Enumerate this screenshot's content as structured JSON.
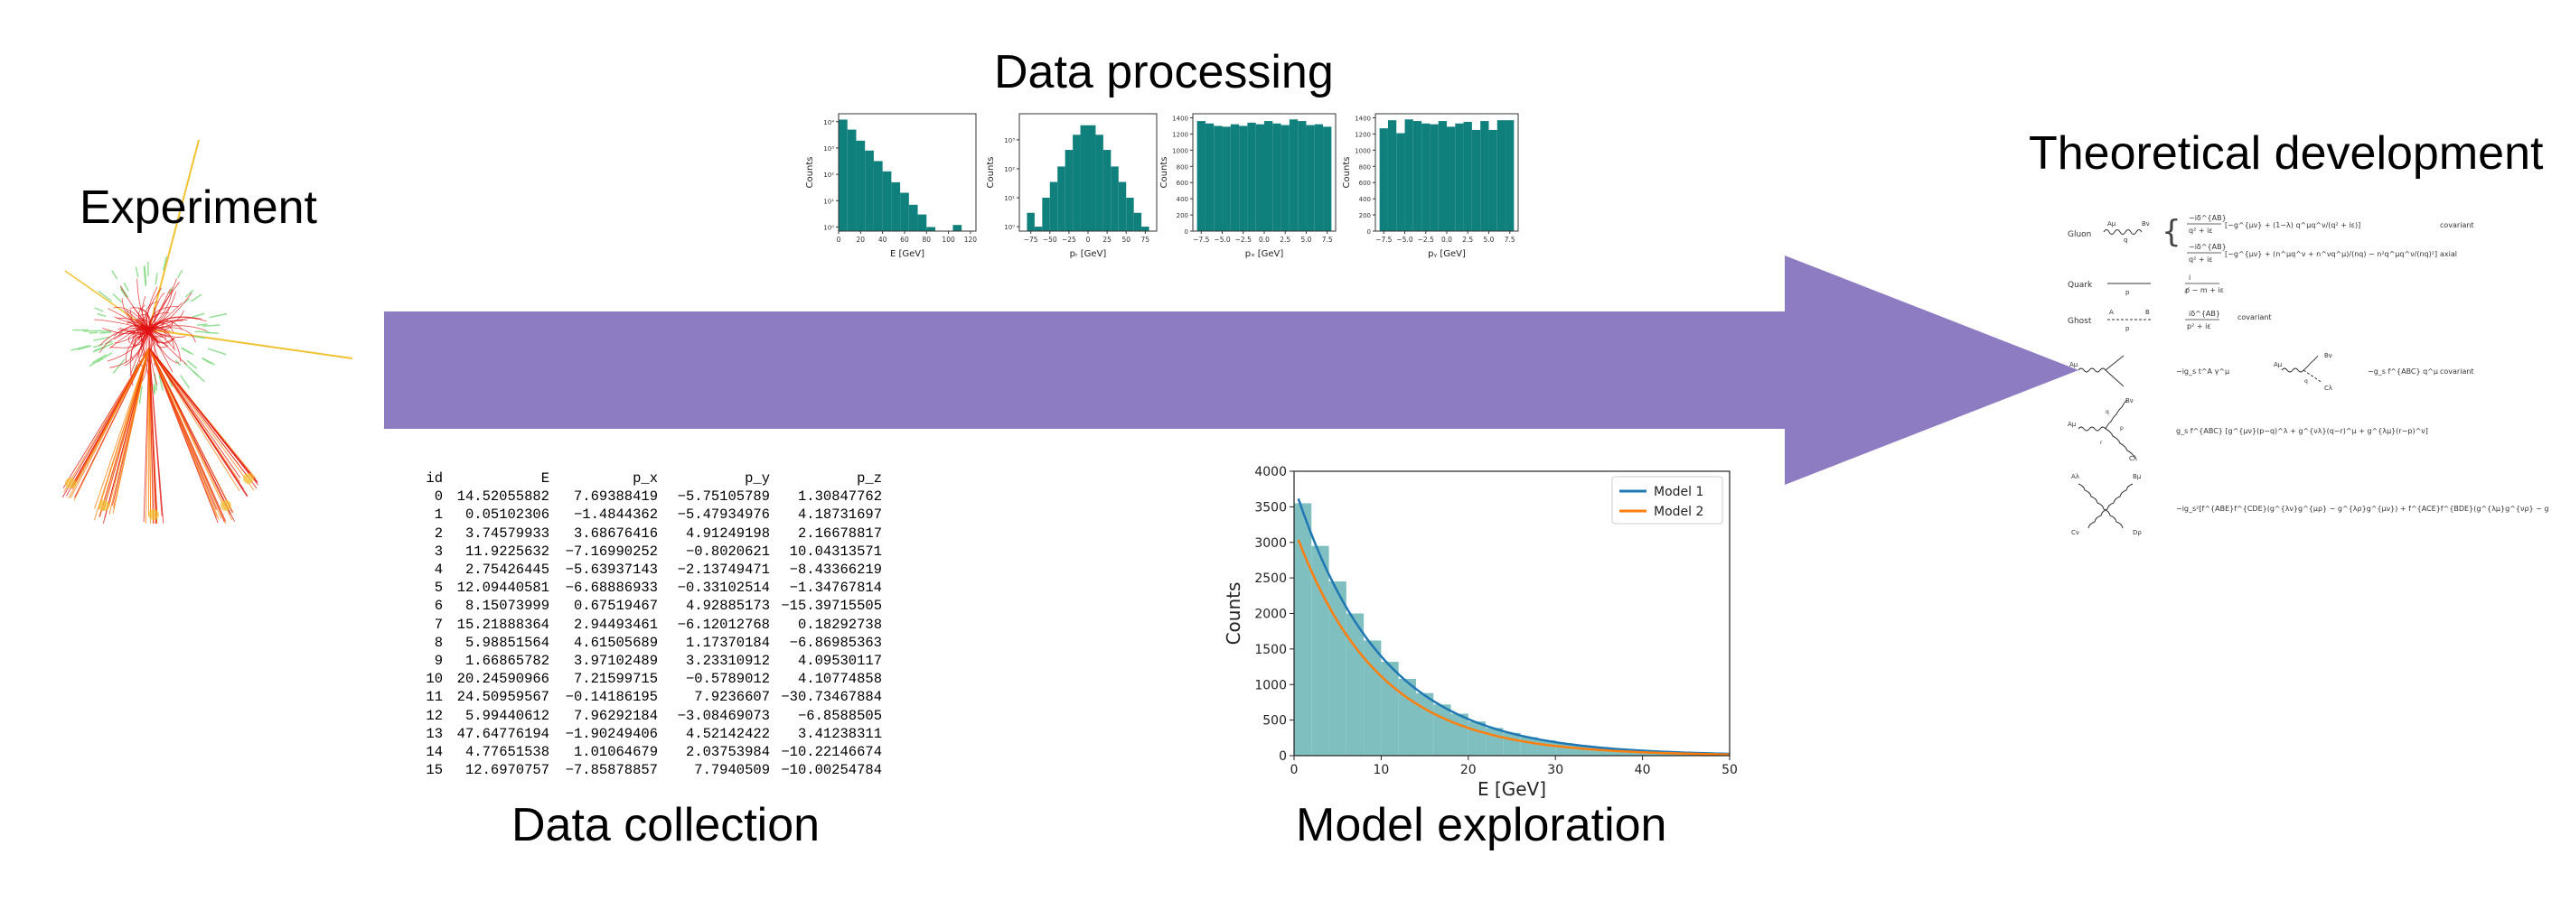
{
  "labels": {
    "experiment": "Experiment",
    "data_processing": "Data processing",
    "theoretical_development": "Theoretical development",
    "data_collection": "Data collection",
    "model_exploration": "Model exploration"
  },
  "colors": {
    "arrow": "#8e7cc3",
    "hist_fill": "#10807d",
    "model_hist_fill": "#7fbfbf",
    "model1": "#1f77b4",
    "model2": "#ff7f0e"
  },
  "table": {
    "columns": [
      "id",
      "E",
      "p_x",
      "p_y",
      "p_z"
    ],
    "rows": [
      [
        "0",
        "14.52055882",
        "7.69388419",
        "−5.75105789",
        "1.30847762"
      ],
      [
        "1",
        "0.05102306",
        "−1.4844362",
        "−5.47934976",
        "4.18731697"
      ],
      [
        "2",
        "3.74579933",
        "3.68676416",
        "4.91249198",
        "2.16678817"
      ],
      [
        "3",
        "11.9225632",
        "−7.16990252",
        "−0.8020621",
        "10.04313571"
      ],
      [
        "4",
        "2.75426445",
        "−5.63937143",
        "−2.13749471",
        "−8.43366219"
      ],
      [
        "5",
        "12.09440581",
        "−6.68886933",
        "−0.33102514",
        "−1.34767814"
      ],
      [
        "6",
        "8.15073999",
        "0.67519467",
        "4.92885173",
        "−15.39715505"
      ],
      [
        "7",
        "15.21888364",
        "2.94493461",
        "−6.12012768",
        "0.18292738"
      ],
      [
        "8",
        "5.98851564",
        "4.61505689",
        "1.17370184",
        "−6.86985363"
      ],
      [
        "9",
        "1.66865782",
        "3.97102489",
        "3.23310912",
        "4.09530117"
      ],
      [
        "10",
        "20.24590966",
        "7.21599715",
        "−0.5789012",
        "4.10774858"
      ],
      [
        "11",
        "24.50959567",
        "−0.14186195",
        "7.9236607",
        "−30.73467884"
      ],
      [
        "12",
        "5.99440612",
        "7.96292184",
        "−3.08469073",
        "−6.8588505"
      ],
      [
        "13",
        "47.64776194",
        "−1.90249406",
        "4.52142422",
        "3.41238311"
      ],
      [
        "14",
        "4.77651538",
        "1.01064679",
        "2.03753984",
        "−10.22146674"
      ],
      [
        "15",
        "12.6970757",
        "−7.85878857",
        "7.7940509",
        "−10.00254784"
      ]
    ]
  },
  "chart_data": [
    {
      "type": "bar",
      "xlabel": "E [GeV]",
      "ylabel": "Counts",
      "log_y": true,
      "x_ticks": [
        "0",
        "20",
        "40",
        "60",
        "80",
        "100",
        "120"
      ],
      "y_ticks": [
        "10⁰",
        "10¹",
        "10²",
        "10³",
        "10⁴"
      ],
      "xlim": [
        0,
        125
      ],
      "ylim": [
        0.7,
        20000
      ],
      "bin_width": 8,
      "x_start": 0,
      "values": [
        12000,
        5000,
        1900,
        800,
        320,
        130,
        50,
        20,
        7,
        3,
        1,
        0,
        0,
        1.2
      ]
    },
    {
      "type": "bar",
      "xlabel": "pᵣ [GeV]",
      "ylabel": "Counts",
      "log_y": true,
      "x_ticks": [
        "−75",
        "−50",
        "−25",
        "0",
        "25",
        "50",
        "75"
      ],
      "y_ticks": [
        "10⁰",
        "10¹",
        "10²",
        "10³"
      ],
      "xlim": [
        -90,
        90
      ],
      "ylim": [
        0.7,
        8000
      ],
      "bin_width": 10,
      "x_start": -80,
      "values": [
        3,
        1,
        10,
        35,
        120,
        450,
        1500,
        3200,
        3200,
        1500,
        450,
        120,
        35,
        10,
        3,
        1
      ]
    },
    {
      "type": "bar",
      "xlabel": "pₓ [GeV]",
      "ylabel": "Counts",
      "log_y": false,
      "x_ticks": [
        "−7.5",
        "−5.0",
        "−2.5",
        "0.0",
        "2.5",
        "5.0",
        "7.5"
      ],
      "y_ticks": [
        "0",
        "200",
        "400",
        "600",
        "800",
        "1000",
        "1200",
        "1400"
      ],
      "xlim": [
        -8.5,
        8.5
      ],
      "ylim": [
        0,
        1450
      ],
      "bin_width": 1,
      "x_start": -8,
      "values": [
        1360,
        1330,
        1300,
        1290,
        1320,
        1300,
        1340,
        1320,
        1360,
        1330,
        1310,
        1380,
        1360,
        1310,
        1320,
        1290
      ]
    },
    {
      "type": "bar",
      "xlabel": "pᵧ [GeV]",
      "ylabel": "Counts",
      "log_y": false,
      "x_ticks": [
        "−7.5",
        "−5.0",
        "−2.5",
        "0.0",
        "2.5",
        "5.0",
        "7.5"
      ],
      "y_ticks": [
        "0",
        "200",
        "400",
        "600",
        "800",
        "1000",
        "1200",
        "1400"
      ],
      "xlim": [
        -8.5,
        8.5
      ],
      "ylim": [
        0,
        1450
      ],
      "bin_width": 1,
      "x_start": -8,
      "values": [
        1270,
        1370,
        1210,
        1380,
        1360,
        1330,
        1320,
        1360,
        1290,
        1330,
        1350,
        1250,
        1360,
        1250,
        1370,
        1370
      ]
    },
    {
      "type": "bar",
      "xlabel": "E [GeV]",
      "ylabel": "Counts",
      "xlim": [
        0,
        50
      ],
      "ylim": [
        0,
        4000
      ],
      "x_ticks": [
        "0",
        "10",
        "20",
        "30",
        "40",
        "50"
      ],
      "y_ticks": [
        "0",
        "500",
        "1000",
        "1500",
        "2000",
        "2500",
        "3000",
        "3500",
        "4000"
      ],
      "legend": [
        "Model 1",
        "Model 2"
      ],
      "legend_position": "top-right",
      "bin_width": 2,
      "x_start": 0,
      "values": [
        3550,
        2950,
        2450,
        2000,
        1620,
        1320,
        1080,
        880,
        720,
        590,
        480,
        390,
        320,
        260,
        215,
        175,
        145,
        118,
        96,
        79,
        64,
        52,
        43,
        35,
        29
      ],
      "series": [
        {
          "name": "Model 1",
          "amplitude": 3800,
          "decay_length": 10
        },
        {
          "name": "Model 2",
          "amplitude": 3200,
          "decay_length": 9.5
        }
      ]
    }
  ],
  "feynman_rules": {
    "rows": [
      {
        "name": "Gluon",
        "note_1": "covariant",
        "note_2": "axial"
      },
      {
        "name": "Quark"
      },
      {
        "name": "Ghost",
        "note_1": "covariant"
      },
      {
        "note_1": "covariant"
      }
    ]
  }
}
